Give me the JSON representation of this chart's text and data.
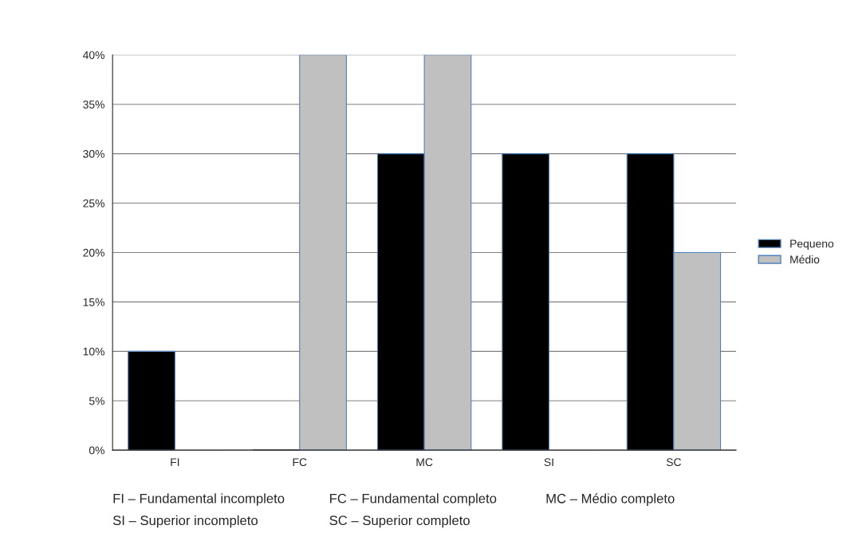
{
  "chart_data": {
    "type": "bar",
    "categories": [
      "FI",
      "FC",
      "MC",
      "SI",
      "SC"
    ],
    "series": [
      {
        "name": "Pequeno",
        "color": "#000000",
        "values": [
          10,
          0,
          30,
          30,
          30
        ]
      },
      {
        "name": "Médio",
        "color": "#c0c0c0",
        "values": [
          0,
          40,
          40,
          0,
          20
        ]
      }
    ],
    "ylim": [
      0,
      40
    ],
    "yticks": [
      {
        "value": 0,
        "label": "0%"
      },
      {
        "value": 5,
        "label": "5%"
      },
      {
        "value": 10,
        "label": "10%"
      },
      {
        "value": 15,
        "label": "15%"
      },
      {
        "value": 20,
        "label": "20%"
      },
      {
        "value": 25,
        "label": "25%"
      },
      {
        "value": 30,
        "label": "30%"
      },
      {
        "value": 35,
        "label": "35%"
      },
      {
        "value": 40,
        "label": "40%"
      }
    ],
    "grid": "y",
    "legend": "right",
    "annotations": [
      "FI – Fundamental incompleto",
      "FC – Fundamental completo",
      "MC – Médio completo",
      "SI – Superior incompleto",
      "SC – Superior completo"
    ]
  }
}
